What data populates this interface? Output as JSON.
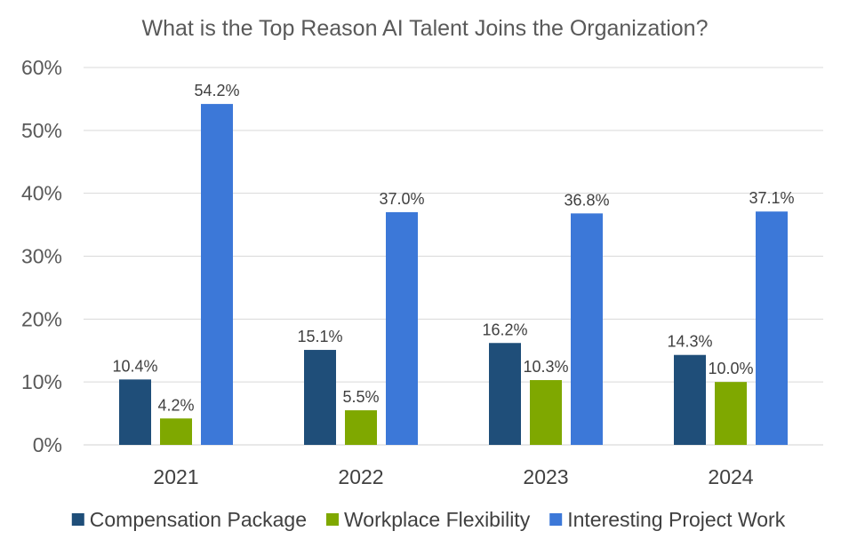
{
  "chart_data": {
    "type": "bar",
    "title": "What is the Top Reason AI Talent Joins the Organization?",
    "xlabel": "",
    "ylabel": "",
    "categories": [
      "2021",
      "2022",
      "2023",
      "2024"
    ],
    "ylim": [
      0,
      60
    ],
    "y_ticks": [
      0,
      10,
      20,
      30,
      40,
      50,
      60
    ],
    "y_tick_labels": [
      "0%",
      "10%",
      "20%",
      "30%",
      "40%",
      "50%",
      "60%"
    ],
    "grid": true,
    "legend_position": "bottom",
    "series": [
      {
        "name": "Compensation Package",
        "color": "#1f4e79",
        "values": [
          10.4,
          15.1,
          16.2,
          14.3
        ],
        "labels": [
          "10.4%",
          "15.1%",
          "16.2%",
          "14.3%"
        ]
      },
      {
        "name": "Workplace Flexibility",
        "color": "#7fa800",
        "values": [
          4.2,
          5.5,
          10.3,
          10.0
        ],
        "labels": [
          "4.2%",
          "5.5%",
          "10.3%",
          "10.0%"
        ]
      },
      {
        "name": "Interesting Project Work",
        "color": "#3c78d8",
        "values": [
          54.2,
          37.0,
          36.8,
          37.1
        ],
        "labels": [
          "54.2%",
          "37.0%",
          "36.8%",
          "37.1%"
        ]
      }
    ]
  }
}
